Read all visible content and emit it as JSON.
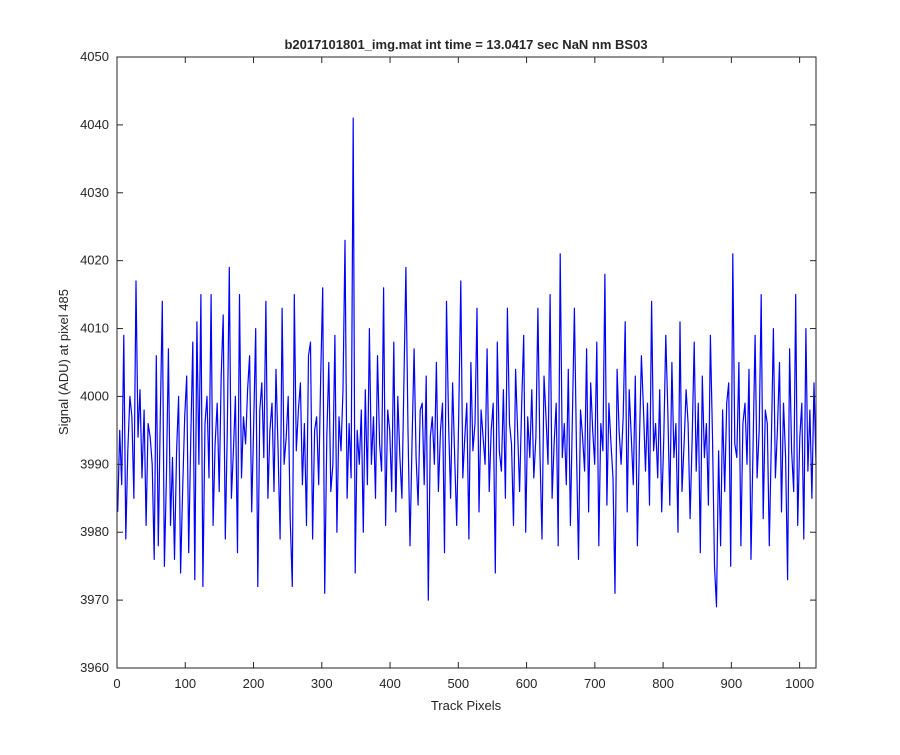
{
  "chart_data": {
    "type": "line",
    "title": "b2017101801_img.mat int time = 13.0417 sec  NaN nm BS03",
    "xlabel": "Track Pixels",
    "ylabel": "Signal (ADU) at pixel 485",
    "xlim": [
      0,
      1024
    ],
    "ylim": [
      3960,
      4050
    ],
    "xticks": [
      0,
      100,
      200,
      300,
      400,
      500,
      600,
      700,
      800,
      900,
      1000
    ],
    "yticks": [
      3960,
      3970,
      3980,
      3990,
      4000,
      4010,
      4020,
      4030,
      4040,
      4050
    ],
    "grid": false,
    "series": [
      {
        "color": "#0000ff",
        "sample_step": 8,
        "x_start": 1,
        "x_end": 1024,
        "values": [
          3983,
          3995,
          3987,
          4009,
          3979,
          3992,
          4000,
          3997,
          3985,
          4017,
          3994,
          4001,
          3988,
          3998,
          3981,
          3996,
          3994,
          3990,
          3976,
          4006,
          3978,
          3997,
          4014,
          3975,
          3988,
          4007,
          3981,
          3991,
          3976,
          3992,
          4000,
          3974,
          3986,
          3997,
          4003,
          3977,
          3994,
          4008,
          3973,
          4011,
          3990,
          4015,
          3972,
          3996,
          4000,
          3988,
          4015,
          3981,
          3993,
          3999,
          3986,
          4003,
          4012,
          3979,
          3995,
          4019,
          3985,
          3992,
          4000,
          3977,
          4015,
          3988,
          3997,
          3993,
          4001,
          4006,
          3983,
          3996,
          4010,
          3972,
          3998,
          4002,
          3991,
          4014,
          3985,
          3995,
          3999,
          3986,
          4004,
          3992,
          3979,
          4013,
          3990,
          3994,
          4000,
          3982,
          3972,
          4015,
          3992,
          3998,
          4002,
          3987,
          3996,
          3981,
          4006,
          4008,
          3979,
          3995,
          3997,
          3987,
          4003,
          4016,
          3971,
          3994,
          4005,
          3986,
          3990,
          4009,
          3980,
          3997,
          3992,
          4001,
          4023,
          3985,
          3996,
          3988,
          4041,
          3974,
          3995,
          3990,
          3998,
          3980,
          4001,
          3987,
          4010,
          3990,
          3997,
          3985,
          4006,
          3993,
          3989,
          4016,
          3981,
          3998,
          3995,
          3986,
          4008,
          3983,
          4000,
          3991,
          3985,
          4002,
          4019,
          3995,
          3978,
          3993,
          4007,
          3991,
          3984,
          3998,
          3999,
          3987,
          4003,
          3970,
          3994,
          3997,
          3990,
          4005,
          3986,
          3995,
          3999,
          3977,
          4014,
          3996,
          3985,
          4002,
          3991,
          3981,
          3997,
          4017,
          3988,
          3994,
          3999,
          3979,
          4005,
          3992,
          3996,
          4013,
          3983,
          3998,
          3994,
          3990,
          4007,
          3986,
          3995,
          3999,
          3974,
          4008,
          3992,
          3989,
          4001,
          3985,
          4013,
          3996,
          3993,
          3981,
          4004,
          3995,
          3986,
          3999,
          4009,
          3980,
          3997,
          3991,
          4001,
          3988,
          3994,
          4013,
          3992,
          3979,
          4003,
          3997,
          3990,
          4015,
          3985,
          3993,
          3999,
          3978,
          4021,
          3991,
          3996,
          3987,
          4004,
          3981,
          3997,
          4013,
          3992,
          3976,
          3998,
          3994,
          3989,
          4007,
          3983,
          4002,
          3995,
          3990,
          4008,
          3978,
          3996,
          3992,
          4018,
          3984,
          3999,
          3993,
          3988,
          3971,
          4004,
          3995,
          3990,
          3997,
          4011,
          3983,
          4001,
          3994,
          3987,
          4003,
          3978,
          3993,
          4006,
          3998,
          3989,
          3999,
          3984,
          4014,
          3992,
          3996,
          3988,
          4001,
          3983,
          3994,
          4009,
          3998,
          3984,
          4005,
          3991,
          3996,
          3980,
          4011,
          3986,
          3993,
          4001,
          3996,
          3982,
          3994,
          4008,
          3989,
          3999,
          3977,
          4003,
          3991,
          3996,
          3984,
          4009,
          3994,
          3975,
          3969,
          3992,
          3978,
          3998,
          3986,
          3999,
          4002,
          3975,
          4021,
          3993,
          3991,
          4005,
          3978,
          3996,
          3999,
          3990,
          4004,
          3976,
          3993,
          4009,
          3988,
          3995,
          4015,
          3982,
          3998,
          3996,
          3978,
          3993,
          4010,
          3988,
          3995,
          4005,
          3983,
          3999,
          3991,
          3973,
          4007,
          3992,
          3986,
          4015,
          3981,
          3994,
          3999,
          3979,
          4010,
          3989,
          3998,
          3985,
          4002,
          3990
        ]
      }
    ]
  }
}
